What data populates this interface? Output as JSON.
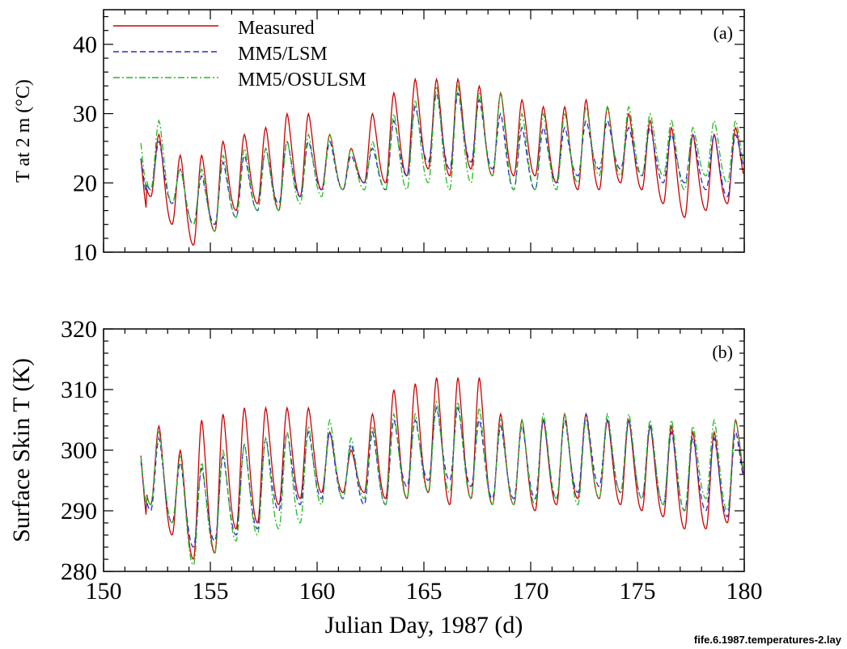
{
  "footer": "fife.6.1987.temperatures-2.lay",
  "colors": {
    "measured": "#cc0000",
    "lsm": "#2b2bcc",
    "osulsm": "#22bb22",
    "axis": "#000000"
  },
  "chart_data": [
    {
      "type": "line",
      "panel_label": "(a)",
      "ylabel": "T at 2 m (°C)",
      "xlabel": "",
      "xlim": [
        150,
        180
      ],
      "ylim": [
        10,
        45
      ],
      "x_ticks": [
        150,
        155,
        160,
        165,
        170,
        175,
        180
      ],
      "y_ticks": [
        10,
        20,
        30,
        40
      ],
      "show_x_tick_labels": false,
      "grid": false,
      "legend_position": "top-left",
      "series": [
        {
          "name": "Measured",
          "style": "solid",
          "day_start": 152,
          "day_end": 180,
          "daily_min": [
            18,
            14,
            11,
            13,
            16,
            17,
            16,
            18,
            19,
            19,
            20,
            20,
            21,
            22,
            21,
            22,
            21,
            21,
            21,
            20,
            19,
            19,
            20,
            19,
            17,
            15,
            16,
            17,
            19
          ],
          "daily_max": [
            27,
            24,
            24,
            26,
            27,
            28,
            30,
            30,
            27,
            25,
            30,
            33,
            35,
            35,
            35,
            34,
            33,
            32,
            31,
            31,
            32,
            31,
            30,
            29,
            28,
            27,
            27,
            28,
            30
          ]
        },
        {
          "name": "MM5/LSM",
          "style": "dashed",
          "day_start": 152,
          "day_end": 180,
          "daily_min": [
            19,
            17,
            14,
            14,
            15,
            16,
            17,
            18,
            19,
            19,
            20,
            19,
            21,
            23,
            22,
            23,
            22,
            19,
            19,
            20,
            21,
            22,
            22,
            21,
            20,
            20,
            19,
            18,
            21
          ],
          "daily_max": [
            26,
            22,
            21,
            23,
            24,
            25,
            26,
            26,
            26,
            24,
            25,
            29,
            31,
            33,
            33,
            32,
            30,
            28,
            28,
            28,
            29,
            29,
            28,
            28,
            27,
            27,
            27,
            27,
            28
          ]
        },
        {
          "name": "MM5/OSULSM",
          "style": "dashdot",
          "day_start": 152,
          "day_end": 180,
          "daily_min": [
            19,
            17,
            14,
            13,
            15,
            16,
            16,
            17,
            18,
            19,
            19,
            19,
            19,
            20,
            19,
            20,
            21,
            19,
            19,
            19,
            20,
            21,
            21,
            21,
            21,
            19,
            21,
            20,
            21
          ],
          "daily_max": [
            29,
            22,
            22,
            24,
            25,
            25,
            26,
            27,
            27,
            25,
            26,
            30,
            32,
            34,
            34,
            33,
            33,
            30,
            30,
            30,
            31,
            31,
            31,
            30,
            29,
            28,
            29,
            29,
            31
          ]
        }
      ]
    },
    {
      "type": "line",
      "panel_label": "(b)",
      "ylabel": "Surface Skin T (K)",
      "xlabel": "Julian Day, 1987 (d)",
      "xlim": [
        150,
        180
      ],
      "ylim": [
        280,
        320
      ],
      "x_ticks": [
        150,
        155,
        160,
        165,
        170,
        175,
        180
      ],
      "y_ticks": [
        280,
        290,
        300,
        310,
        320
      ],
      "show_x_tick_labels": true,
      "grid": false,
      "legend_position": "none",
      "series": [
        {
          "name": "Measured",
          "style": "solid",
          "day_start": 152,
          "day_end": 180,
          "daily_min": [
            291,
            286,
            282,
            283,
            287,
            288,
            291,
            292,
            293,
            293,
            293,
            292,
            292,
            293,
            291,
            292,
            291,
            291,
            290,
            291,
            292,
            292,
            291,
            290,
            289,
            287,
            287,
            288,
            293
          ],
          "daily_max": [
            304,
            300,
            305,
            306,
            307,
            307,
            307,
            307,
            303,
            300,
            306,
            310,
            311,
            312,
            312,
            312,
            306,
            305,
            305,
            306,
            306,
            305,
            305,
            304,
            304,
            303,
            303,
            305,
            305
          ]
        },
        {
          "name": "MM5/LSM",
          "style": "dashed",
          "day_start": 152,
          "day_end": 180,
          "daily_min": [
            290,
            288,
            284,
            285,
            286,
            287,
            290,
            291,
            292,
            292,
            291,
            291,
            294,
            295,
            295,
            294,
            292,
            292,
            292,
            292,
            293,
            294,
            293,
            292,
            291,
            290,
            290,
            289,
            293
          ],
          "daily_max": [
            302,
            298,
            297,
            299,
            301,
            302,
            303,
            303,
            303,
            301,
            303,
            305,
            305,
            307,
            307,
            305,
            304,
            304,
            305,
            305,
            306,
            305,
            305,
            304,
            303,
            302,
            302,
            303,
            304
          ]
        },
        {
          "name": "MM5/OSULSM",
          "style": "dashdot",
          "day_start": 152,
          "day_end": 180,
          "daily_min": [
            291,
            288,
            281,
            283,
            285,
            286,
            287,
            288,
            291,
            292,
            292,
            291,
            292,
            293,
            293,
            292,
            291,
            291,
            291,
            292,
            291,
            292,
            293,
            292,
            291,
            290,
            292,
            290,
            294
          ],
          "daily_max": [
            303,
            299,
            298,
            300,
            301,
            302,
            303,
            304,
            305,
            302,
            304,
            306,
            306,
            308,
            308,
            307,
            305,
            305,
            306,
            306,
            305,
            306,
            306,
            305,
            305,
            304,
            305,
            305,
            306
          ]
        }
      ]
    }
  ]
}
